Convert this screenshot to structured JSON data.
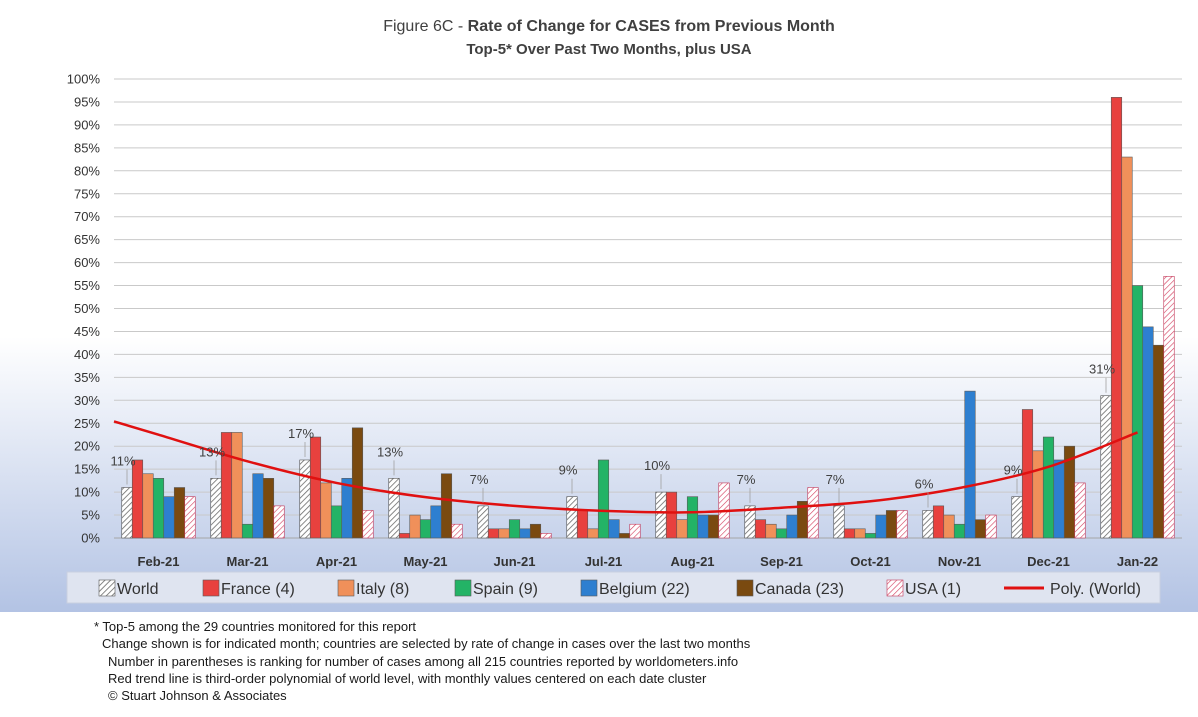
{
  "chart_data": {
    "type": "bar",
    "title_prefix": "Figure 6C - ",
    "title_bold": "Rate of Change for CASES from Previous Month",
    "subtitle": "Top-5* Over Past Two Months, plus USA",
    "categories": [
      "Feb-21",
      "Mar-21",
      "Apr-21",
      "May-21",
      "Jun-21",
      "Jul-21",
      "Aug-21",
      "Sep-21",
      "Oct-21",
      "Nov-21",
      "Dec-21",
      "Jan-22"
    ],
    "y_ticks": [
      "0%",
      "5%",
      "10%",
      "15%",
      "20%",
      "25%",
      "30%",
      "35%",
      "40%",
      "45%",
      "50%",
      "55%",
      "60%",
      "65%",
      "70%",
      "75%",
      "80%",
      "85%",
      "90%",
      "95%",
      "100%"
    ],
    "ylim": [
      0,
      100
    ],
    "grid": true,
    "legend_position": "bottom",
    "series": [
      {
        "name": "World",
        "color": "#ffffff",
        "pattern": "diagonal-gray",
        "values": [
          11,
          13,
          17,
          13,
          7,
          9,
          10,
          7,
          7,
          6,
          9,
          31
        ]
      },
      {
        "name": "France (4)",
        "color": "#e8413e",
        "values": [
          17,
          23,
          22,
          1,
          2,
          6,
          10,
          4,
          2,
          7,
          28,
          96
        ]
      },
      {
        "name": "Italy (8)",
        "color": "#f0905a",
        "values": [
          14,
          23,
          12,
          5,
          2,
          2,
          4,
          3,
          2,
          5,
          19,
          83
        ]
      },
      {
        "name": "Spain (9)",
        "color": "#23b366",
        "values": [
          13,
          3,
          7,
          4,
          4,
          17,
          9,
          2,
          1,
          3,
          22,
          55
        ]
      },
      {
        "name": "Belgium (22)",
        "color": "#2e7fd0",
        "values": [
          9,
          14,
          13,
          7,
          2,
          4,
          5,
          5,
          5,
          32,
          17,
          46
        ]
      },
      {
        "name": "Canada (23)",
        "color": "#7a4a10",
        "values": [
          11,
          13,
          24,
          14,
          3,
          1,
          5,
          8,
          6,
          4,
          20,
          42
        ]
      },
      {
        "name": "USA (1)",
        "color": "#ffffff",
        "pattern": "diagonal-red",
        "values": [
          9,
          7,
          6,
          3,
          1,
          3,
          12,
          11,
          6,
          5,
          12,
          57
        ]
      }
    ],
    "data_labels": [
      "11%",
      "13%",
      "17%",
      "13%",
      "7%",
      "9%",
      "10%",
      "7%",
      "7%",
      "6%",
      "9%",
      "31%"
    ],
    "trendline": {
      "name": "Poly. (World)",
      "color": "#e01010",
      "values": [
        22.5,
        16.7,
        12.0,
        8.9,
        7.0,
        5.9,
        5.6,
        6.6,
        8.0,
        10.9,
        15.5,
        23.0
      ]
    }
  },
  "footnotes": [
    "* Top-5 among the 29 countries monitored for this report",
    "Change shown is for indicated month; countries are selected by rate of change in cases over the last two months",
    "Number in parentheses is ranking for number of cases among all 215 countries reported by worldometers.info",
    "Red trend line is third-order polynomial of world level, with monthly values centered on each date cluster",
    "© Stuart Johnson & Associates"
  ]
}
